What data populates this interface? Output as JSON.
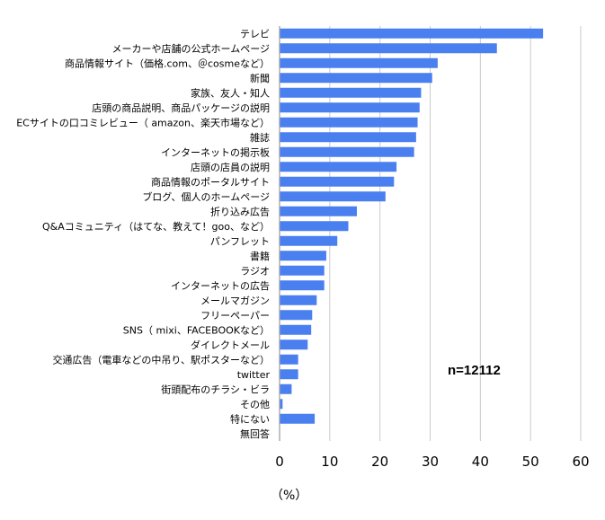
{
  "chart_data": {
    "type": "bar",
    "orientation": "horizontal",
    "categories": [
      "テレビ",
      "メーカーや店舗の公式ホームページ",
      "商品情報サイト（価格.com、＠cosmeなど）",
      "新聞",
      "家族、友人・知人",
      "店頭の商品説明、商品パッケージの説明",
      "ECサイトの口コミレビュー（ amazon、楽天市場など）",
      "雑誌",
      "インターネットの掲示板",
      "店頭の店員の説明",
      "商品情報のポータルサイト",
      "ブログ、個人のホームページ",
      "折り込み広告",
      "Q&Aコミュニティ（はてな、教えて！goo、など）",
      "パンフレット",
      "書籍",
      "ラジオ",
      "インターネットの広告",
      "メールマガジン",
      "フリーペーパー",
      "SNS（ mixi、FACEBOOKなど）",
      "ダイレクトメール",
      "交通広告（電車などの中吊り、駅ポスターなど）",
      "twitter",
      "街頭配布のチラシ・ビラ",
      "その他",
      "特にない",
      "無回答"
    ],
    "values": [
      52.5,
      43.3,
      31.5,
      30.4,
      28.2,
      27.9,
      27.5,
      27.2,
      26.8,
      23.3,
      22.8,
      21.1,
      15.4,
      13.7,
      11.5,
      9.3,
      8.9,
      8.9,
      7.4,
      6.5,
      6.3,
      5.6,
      3.7,
      3.7,
      2.4,
      0.6,
      7.0,
      0.0
    ],
    "xlim": [
      0,
      60
    ],
    "xticks": [
      "0",
      "10",
      "20",
      "30",
      "40",
      "50",
      "60"
    ],
    "xlabel": "（%）",
    "annotation": "n=12112",
    "grid": true,
    "colors": {
      "bar": "#4a7ff0",
      "grid": "#c9c9c9",
      "axis": "#9a9a9a"
    }
  }
}
